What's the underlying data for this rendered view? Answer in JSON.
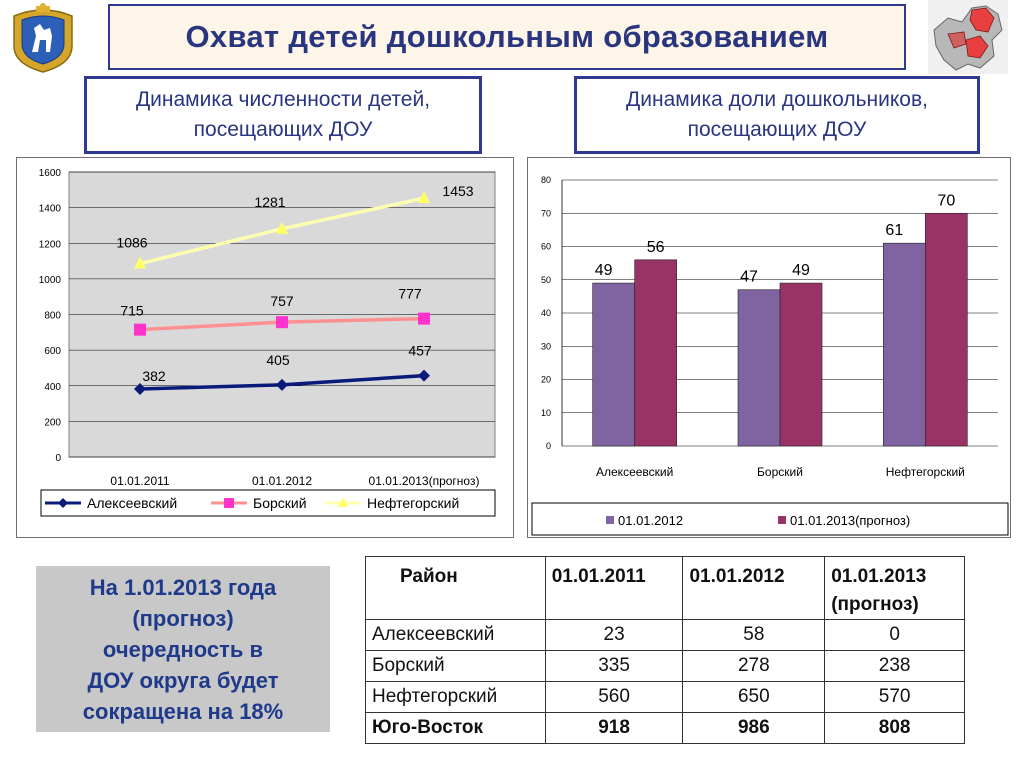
{
  "header": {
    "title": "Охват детей дошкольным образованием"
  },
  "subtitles": {
    "left_line1": "Динамика численности детей,",
    "left_line2": "посещающих ДОУ",
    "right_line1": "Динамика доли дошкольников,",
    "right_line2": "посещающих ДОУ"
  },
  "colors": {
    "accent": "#2f3990",
    "alekseevsky": "#0a1a7a",
    "borsky": "#ff33cc",
    "neftegorsky": "#ffff66",
    "line_borsky": "#ff9090",
    "line_neftegorsky": "#ffffb0",
    "bar_2012": "#8064a2",
    "bar_2013": "#993366",
    "plot_bg": "#d9d9d9"
  },
  "chart_data": [
    {
      "type": "line",
      "categories": [
        "01.01.2011",
        "01.01.2012",
        "01.01.2013(прогноз)"
      ],
      "series": [
        {
          "name": "Алексеевский",
          "values": [
            382,
            405,
            457
          ]
        },
        {
          "name": "Борский",
          "values": [
            715,
            757,
            777
          ]
        },
        {
          "name": "Нефтегорский",
          "values": [
            1086,
            1281,
            1453
          ]
        }
      ],
      "ylim": [
        0,
        1600
      ],
      "yticks": [
        0,
        200,
        400,
        600,
        800,
        1000,
        1200,
        1400,
        1600
      ],
      "grid": true,
      "legend": "bottom"
    },
    {
      "type": "bar",
      "categories": [
        "Алексеевский",
        "Борский",
        "Нефтегорский"
      ],
      "series": [
        {
          "name": "01.01.2012",
          "values": [
            49,
            47,
            61
          ]
        },
        {
          "name": "01.01.2013(прогноз)",
          "values": [
            56,
            49,
            70
          ]
        }
      ],
      "ylim": [
        0,
        80
      ],
      "yticks": [
        0,
        10,
        20,
        30,
        40,
        50,
        60,
        70,
        80
      ],
      "grid": true,
      "legend": "bottom"
    }
  ],
  "note": {
    "line1": "На 1.01.2013 года",
    "line2": "(прогноз)",
    "line3": "очередность в",
    "line4": "ДОУ  округа будет",
    "line5": "сокращена на 18%"
  },
  "table": {
    "headers": [
      "Район",
      "01.01.2011",
      "01.01.2012",
      "01.01.2013"
    ],
    "header_extra": "(прогноз)",
    "rows": [
      [
        "Алексеевский",
        "23",
        "58",
        "0"
      ],
      [
        "Борский",
        "335",
        "278",
        "238"
      ],
      [
        "Нефтегорский",
        "560",
        "650",
        "570"
      ]
    ],
    "total": [
      "Юго-Восток",
      "918",
      "986",
      "808"
    ]
  }
}
